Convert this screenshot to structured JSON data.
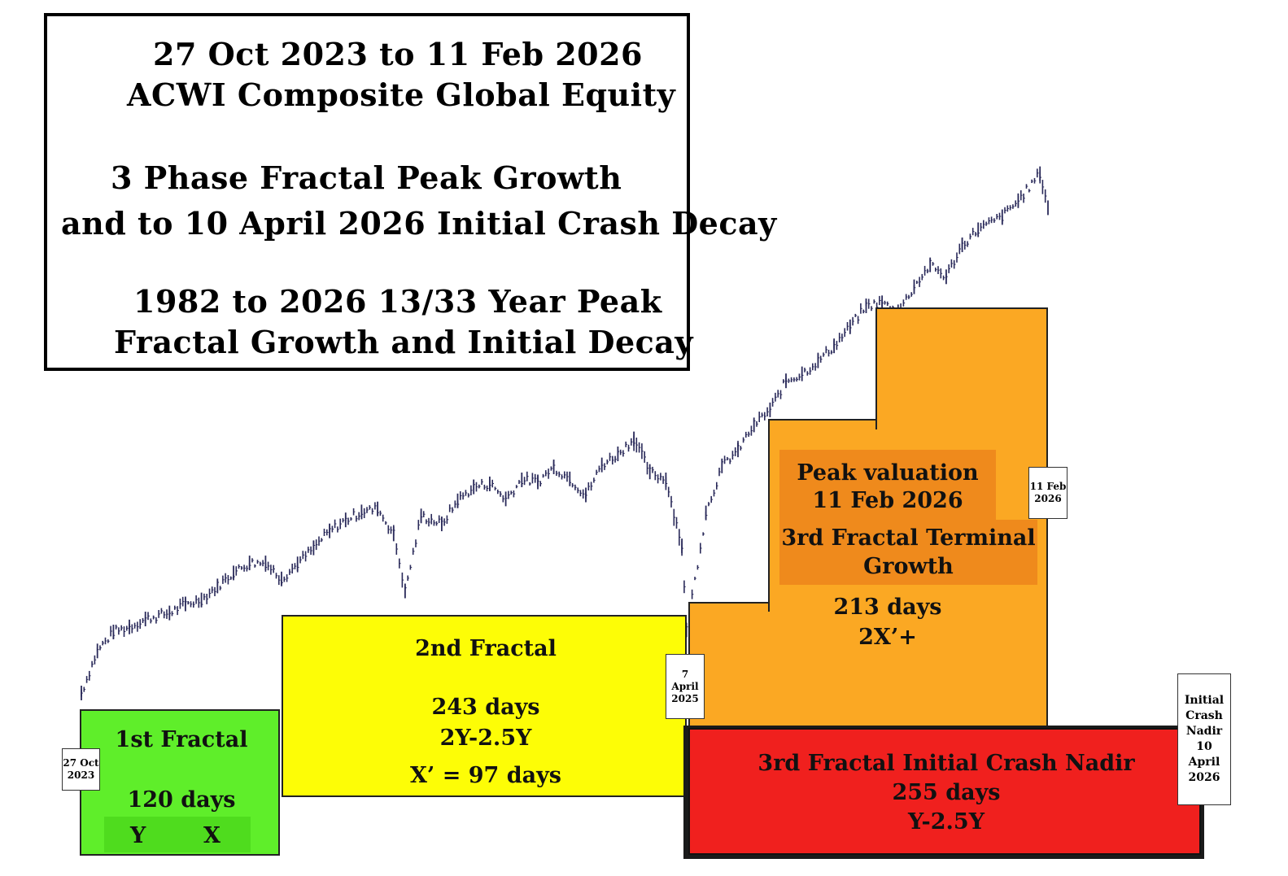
{
  "title_box": {
    "line1": "27 Oct 2023 to 11 Feb 2026",
    "line2": "ACWI Composite Global Equity",
    "line3": "3 Phase Fractal Peak Growth",
    "line4": "and to 10 April 2026 Initial Crash Decay",
    "line5": "1982 to 2026 13/33 Year Peak",
    "line6": "Fractal Growth and Initial Decay"
  },
  "phases": {
    "first": {
      "title": "1st Fractal",
      "days": "120 days",
      "y_label": "Y",
      "x_label": "X",
      "color": "#5fee2a"
    },
    "second": {
      "title": "2nd Fractal",
      "days": "243 days",
      "ratio": "2Y-2.5Y",
      "x_prime": "X’ = 97 days",
      "color": "#fdfd06"
    },
    "third_growth": {
      "peak_line1": "Peak valuation",
      "peak_line2": "11 Feb 2026",
      "title_line1": "3rd Fractal Terminal",
      "title_line2": "Growth",
      "days": "213 days",
      "ratio": "2X’+",
      "color": "#fba823",
      "inner_color": "#ef8a1c"
    },
    "third_crash": {
      "title": "3rd Fractal Initial Crash Nadir",
      "days": "255 days",
      "ratio": "Y-2.5Y",
      "color": "#f0201e"
    }
  },
  "date_markers": {
    "start": [
      "27 Oct",
      "2023"
    ],
    "april_2025": [
      "7",
      "April",
      "2025"
    ],
    "peak": [
      "11 Feb",
      "2026"
    ],
    "nadir": [
      "Initial",
      "Crash",
      "Nadir",
      "10",
      "April",
      "2026"
    ]
  },
  "chart_data": {
    "type": "line",
    "series": [
      {
        "color": "#2a2a5a",
        "x": [
          "2023-10-27",
          "2023-11-10",
          "2023-11-24",
          "2023-12-08",
          "2023-12-22",
          "2024-01-12",
          "2024-01-26",
          "2024-02-09",
          "2024-02-23",
          "2024-03-08",
          "2024-03-22",
          "2024-04-05",
          "2024-04-19",
          "2024-05-03",
          "2024-05-17",
          "2024-05-31",
          "2024-06-14",
          "2024-06-28",
          "2024-07-12",
          "2024-07-26",
          "2024-08-05",
          "2024-08-19",
          "2024-09-06",
          "2024-09-20",
          "2024-10-04",
          "2024-10-18",
          "2024-11-01",
          "2024-11-15",
          "2024-11-29",
          "2024-12-13",
          "2024-12-27",
          "2025-01-10",
          "2025-01-24",
          "2025-02-07",
          "2025-02-21",
          "2025-03-07",
          "2025-03-21",
          "2025-04-04",
          "2025-04-08",
          "2025-04-25",
          "2025-05-09",
          "2025-05-23",
          "2025-06-06",
          "2025-06-20",
          "2025-07-04",
          "2025-07-18",
          "2025-08-01",
          "2025-08-15",
          "2025-08-29",
          "2025-09-12",
          "2025-09-26",
          "2025-10-10",
          "2025-10-24",
          "2025-11-07",
          "2025-11-21",
          "2025-12-05",
          "2025-12-19",
          "2026-01-09",
          "2026-01-23",
          "2026-02-11",
          "2026-02-18"
        ],
        "y": [
          0.0,
          4.2,
          6.1,
          6.6,
          7.4,
          8.0,
          8.9,
          9.3,
          10.7,
          12.0,
          13.0,
          13.0,
          11.4,
          12.9,
          14.5,
          16.2,
          17.3,
          18.1,
          18.4,
          15.9,
          10.2,
          17.7,
          16.9,
          19.2,
          20.6,
          20.9,
          19.4,
          21.3,
          21.1,
          22.6,
          21.4,
          19.8,
          22.8,
          23.9,
          25.4,
          22.1,
          21.3,
          14.7,
          6.3,
          18.0,
          22.7,
          24.3,
          26.8,
          28.3,
          31.2,
          31.9,
          33.2,
          34.7,
          36.6,
          38.7,
          39.0,
          38.1,
          40.6,
          42.8,
          41.6,
          44.8,
          46.3,
          47.6,
          49.2,
          51.9,
          48.5
        ]
      }
    ],
    "grid": false,
    "legend": "none"
  }
}
